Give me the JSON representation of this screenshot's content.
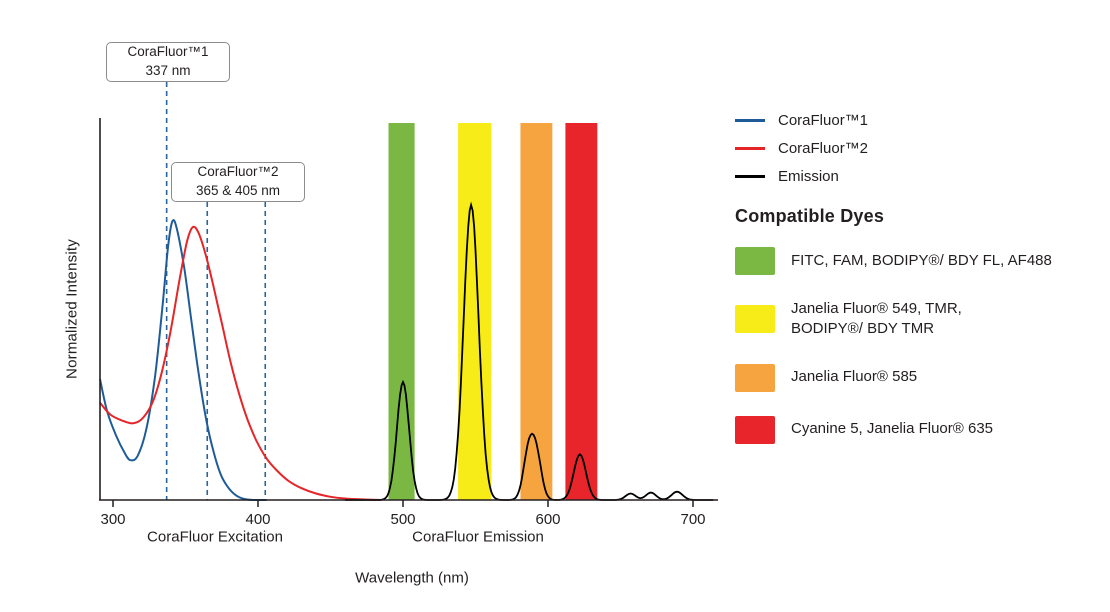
{
  "chart_data": {
    "type": "line",
    "xlabel": "Wavelength (nm)",
    "ylabel": "Normalized Intensity",
    "x_ticks": [
      300,
      400,
      500,
      600,
      700
    ],
    "xlim": [
      291,
      717
    ],
    "ylim": [
      0,
      1.3
    ],
    "grid": false,
    "legend_position": "top-right",
    "axis_group_labels": [
      {
        "label": "CoraFluor Excitation"
      },
      {
        "label": "CoraFluor Emission"
      }
    ],
    "annotations": [
      {
        "label": "CoraFluor™1\n337 nm",
        "lines_nm": [
          337
        ]
      },
      {
        "label": "CoraFluor™2\n365 & 405 nm",
        "lines_nm": [
          365,
          405
        ]
      }
    ],
    "legend": [
      {
        "label": "CoraFluor™1",
        "color": "#1f5c97"
      },
      {
        "label": "CoraFluor™2",
        "color": "#e52528"
      },
      {
        "label": "Emission",
        "color": "#000000"
      }
    ],
    "bands": [
      {
        "name": "green",
        "color": "#7ab843",
        "from_nm": 490,
        "to_nm": 508
      },
      {
        "name": "yellow",
        "color": "#f8ec18",
        "from_nm": 538,
        "to_nm": 561
      },
      {
        "name": "orange",
        "color": "#f6a440",
        "from_nm": 581,
        "to_nm": 603
      },
      {
        "name": "red",
        "color": "#e8252b",
        "from_nm": 612,
        "to_nm": 634
      }
    ],
    "series": [
      {
        "name": "CoraFluor™1",
        "color": "#1f5c97",
        "points": [
          [
            291,
            0.41
          ],
          [
            296,
            0.3
          ],
          [
            302,
            0.22
          ],
          [
            308,
            0.16
          ],
          [
            312,
            0.135
          ],
          [
            317,
            0.15
          ],
          [
            323,
            0.24
          ],
          [
            329,
            0.42
          ],
          [
            334,
            0.65
          ],
          [
            338,
            0.86
          ],
          [
            341,
            0.945
          ],
          [
            344,
            0.92
          ],
          [
            349,
            0.79
          ],
          [
            354,
            0.61
          ],
          [
            359,
            0.43
          ],
          [
            364,
            0.28
          ],
          [
            369,
            0.17
          ],
          [
            374,
            0.09
          ],
          [
            379,
            0.045
          ],
          [
            385,
            0.015
          ],
          [
            391,
            0.003
          ],
          [
            398,
            0
          ],
          [
            406,
            0
          ]
        ]
      },
      {
        "name": "CoraFluor™2",
        "color": "#e52528",
        "points": [
          [
            291,
            0.33
          ],
          [
            298,
            0.29
          ],
          [
            306,
            0.27
          ],
          [
            314,
            0.26
          ],
          [
            321,
            0.28
          ],
          [
            328,
            0.34
          ],
          [
            334,
            0.44
          ],
          [
            340,
            0.58
          ],
          [
            346,
            0.75
          ],
          [
            351,
            0.875
          ],
          [
            355,
            0.925
          ],
          [
            359,
            0.905
          ],
          [
            364,
            0.83
          ],
          [
            369,
            0.73
          ],
          [
            375,
            0.6
          ],
          [
            381,
            0.47
          ],
          [
            387,
            0.36
          ],
          [
            393,
            0.27
          ],
          [
            399,
            0.2
          ],
          [
            406,
            0.14
          ],
          [
            413,
            0.1
          ],
          [
            421,
            0.065
          ],
          [
            430,
            0.04
          ],
          [
            440,
            0.022
          ],
          [
            450,
            0.011
          ],
          [
            460,
            0.005
          ],
          [
            472,
            0.002
          ],
          [
            485,
            0
          ]
        ]
      },
      {
        "name": "Emission",
        "color": "#000000",
        "gaussian_peaks": [
          {
            "center": 500,
            "height": 0.4,
            "width": 4.2
          },
          {
            "center": 547,
            "height": 1.0,
            "width": 5.2
          },
          {
            "center": 586.5,
            "height": 0.155,
            "width": 3.6
          },
          {
            "center": 592,
            "height": 0.145,
            "width": 3.6
          },
          {
            "center": 622,
            "height": 0.155,
            "width": 4.2
          },
          {
            "center": 657,
            "height": 0.022,
            "width": 3.5
          },
          {
            "center": 671,
            "height": 0.025,
            "width": 3.5
          },
          {
            "center": 689,
            "height": 0.028,
            "width": 3.8
          }
        ]
      }
    ]
  },
  "dyes": {
    "heading": "Compatible Dyes",
    "items": [
      {
        "color": "#7ab843",
        "label": "FITC, FAM, BODIPY®/ BDY FL, AF488"
      },
      {
        "color": "#f8ec18",
        "label": "Janelia Fluor® 549, TMR,\nBODIPY®/ BDY TMR"
      },
      {
        "color": "#f6a440",
        "label": "Janelia Fluor® 585"
      },
      {
        "color": "#e8252b",
        "label": "Cyanine 5, Janelia Fluor® 635"
      }
    ]
  }
}
